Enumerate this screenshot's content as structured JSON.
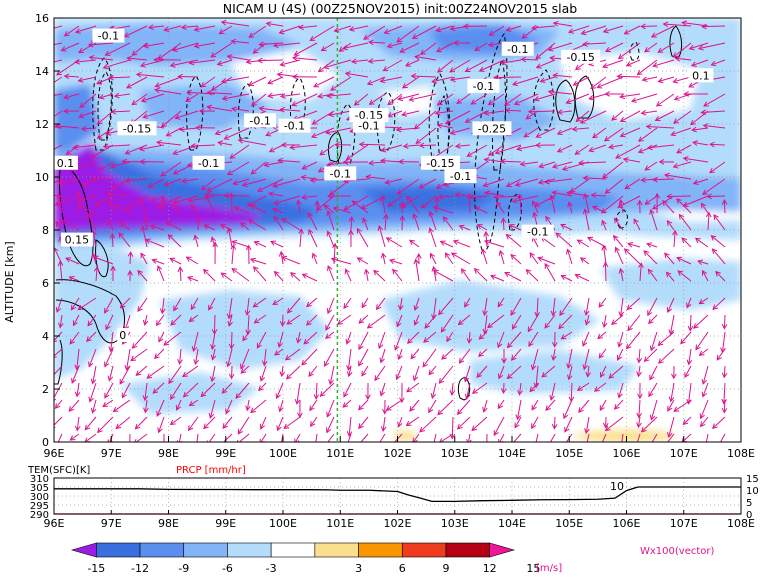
{
  "chart_data": [
    {
      "type": "heatmap",
      "title": "NICAM U (4S) (00Z25NOV2015) init:00Z24NOV2015 slab",
      "xlabel": "",
      "ylabel": "ALTITUDE [km]",
      "x_ticks": [
        "96E",
        "97E",
        "98E",
        "99E",
        "100E",
        "101E",
        "102E",
        "103E",
        "104E",
        "105E",
        "106E",
        "107E",
        "108E"
      ],
      "x_range": [
        96,
        108
      ],
      "y_ticks": [
        "0",
        "2",
        "4",
        "6",
        "8",
        "10",
        "12",
        "14",
        "16"
      ],
      "y_range": [
        0,
        16
      ],
      "grid": true,
      "reference_line_lon": 100.95,
      "vector_legend": "Wx100(vector)",
      "contour_labels": [
        {
          "text": "-0.1",
          "lon": 96.95,
          "z": 15.3
        },
        {
          "text": "-0.15",
          "lon": 97.45,
          "z": 11.8
        },
        {
          "text": "-0.1",
          "lon": 98.7,
          "z": 10.5
        },
        {
          "text": "-0.1",
          "lon": 99.6,
          "z": 12.1
        },
        {
          "text": "-0.1",
          "lon": 100.2,
          "z": 11.9
        },
        {
          "text": "-0.1",
          "lon": 101.0,
          "z": 10.1
        },
        {
          "text": "-0.15",
          "lon": 101.5,
          "z": 12.3
        },
        {
          "text": "-0.1",
          "lon": 101.5,
          "z": 11.9
        },
        {
          "text": "-0.15",
          "lon": 102.75,
          "z": 10.5
        },
        {
          "text": "-0.1",
          "lon": 103.1,
          "z": 10.0
        },
        {
          "text": "-0.1",
          "lon": 103.5,
          "z": 13.4
        },
        {
          "text": "-0.1",
          "lon": 104.1,
          "z": 14.8
        },
        {
          "text": "-0.15",
          "lon": 105.2,
          "z": 14.5
        },
        {
          "text": "-0.25",
          "lon": 103.65,
          "z": 11.8
        },
        {
          "text": "-0.1",
          "lon": 104.45,
          "z": 7.9
        },
        {
          "text": "0.1",
          "lon": 96.2,
          "z": 10.5
        },
        {
          "text": "0.15",
          "lon": 96.4,
          "z": 7.6
        },
        {
          "text": "0.1",
          "lon": 107.3,
          "z": 13.8
        },
        {
          "text": "0",
          "lon": 97.2,
          "z": 4.0
        }
      ],
      "series": [
        {
          "name": "U",
          "type": "filled-contour"
        },
        {
          "name": "W",
          "type": "contour"
        },
        {
          "type": "vector"
        }
      ]
    },
    {
      "type": "line",
      "x_ticks": [
        "96E",
        "97E",
        "98E",
        "99E",
        "100E",
        "101E",
        "102E",
        "103E",
        "104E",
        "105E",
        "106E",
        "107E",
        "108E"
      ],
      "x_range": [
        96,
        108
      ],
      "left_axis": {
        "label": "TEM(SFC)[K]",
        "ticks": [
          "290",
          "295",
          "300",
          "305",
          "310"
        ],
        "range": [
          290,
          310
        ]
      },
      "right_axis": {
        "label": "PRCP [mm/hr]",
        "ticks": [
          "0",
          "5",
          "10",
          "15"
        ],
        "range": [
          0,
          15
        ]
      },
      "annotation": "10",
      "series": [
        {
          "name": "TEM(SFC)",
          "x": [
            96,
            96.5,
            97,
            97.5,
            98,
            98.5,
            99,
            99.5,
            100,
            100.5,
            100.8,
            101,
            101.5,
            102,
            102.2,
            102.4,
            102.6,
            103,
            103.5,
            104,
            104.5,
            105,
            105.5,
            105.8,
            106,
            106.2,
            106.5,
            107,
            107.5,
            108
          ],
          "y": [
            304,
            304,
            304,
            304,
            303.7,
            303.6,
            303.6,
            303.5,
            303.5,
            303.5,
            303.4,
            303.2,
            303.2,
            302.5,
            300.5,
            298.8,
            297,
            297,
            297.4,
            297.6,
            297.9,
            298,
            298.2,
            298.8,
            303,
            305,
            305,
            305,
            305,
            305
          ]
        },
        {
          "name": "PRCP",
          "x": [
            96,
            97,
            98,
            99,
            100,
            101,
            102,
            103,
            104,
            105,
            106,
            107,
            108
          ],
          "y": [
            0,
            0,
            0,
            0,
            0,
            0,
            0,
            0,
            0,
            0,
            0,
            0,
            0
          ]
        }
      ]
    }
  ],
  "colorbar": {
    "labels": [
      "-15",
      "-12",
      "-9",
      "-6",
      "-3",
      "3",
      "6",
      "9",
      "12",
      "15"
    ],
    "unit": "[m/s]",
    "colors": [
      "#9c1ce6",
      "#3a6fe0",
      "#5a8ff0",
      "#82b4f8",
      "#b3dcfb",
      "#ffffff",
      "#fae08c",
      "#fa9600",
      "#f03c1e",
      "#b40014",
      "#f0149b"
    ]
  },
  "colors": {
    "u_light": "#b3dcfb",
    "u_mid": "#82b4f8",
    "u_deep": "#5a8ff0",
    "u_deeper": "#3a6fe0",
    "u_purple": "#9c1ce6",
    "vector": "#dc148c",
    "ref_line": "#2cb42c",
    "prcp": "#ff0000",
    "warm": "#fae08c"
  }
}
